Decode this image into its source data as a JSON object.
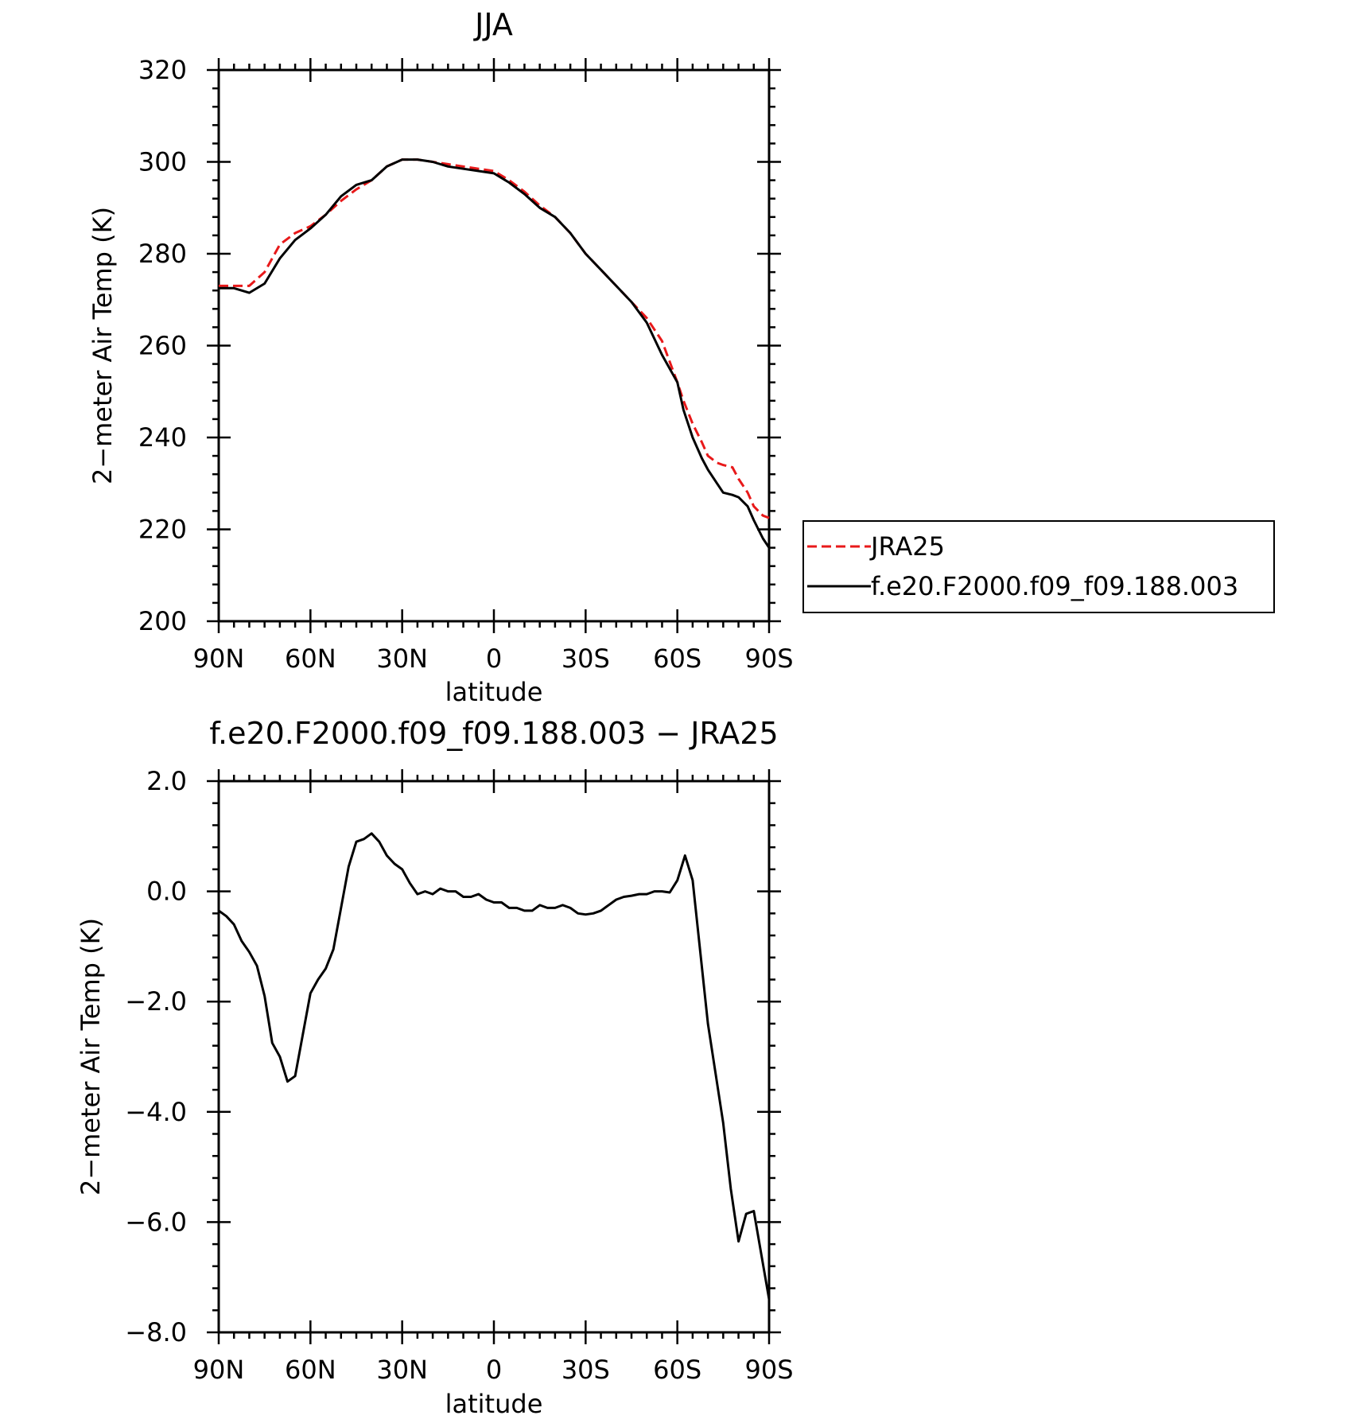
{
  "chart_data": [
    {
      "type": "line",
      "title": "JJA",
      "xlabel": "latitude",
      "ylabel": "2−meter Air Temp (K)",
      "xlim": [
        90,
        -90
      ],
      "ylim": [
        200,
        320
      ],
      "xtick_values": [
        90,
        60,
        30,
        0,
        -30,
        -60,
        -90
      ],
      "xtick_labels": [
        "90N",
        "60N",
        "30N",
        "0",
        "30S",
        "60S",
        "90S"
      ],
      "ytick_values": [
        200,
        220,
        240,
        260,
        280,
        300,
        320
      ],
      "ytick_labels": [
        "200",
        "220",
        "240",
        "260",
        "280",
        "300",
        "320"
      ],
      "legend_position": "right",
      "series": [
        {
          "name": "JRA25",
          "color": "#e8191a",
          "dash": "dashed",
          "x": [
            90,
            85,
            80,
            75,
            70,
            65,
            60,
            55,
            50,
            45,
            40,
            35,
            30,
            25,
            20,
            15,
            10,
            5,
            0,
            -5,
            -10,
            -15,
            -20,
            -25,
            -30,
            -35,
            -40,
            -45,
            -50,
            -55,
            -60,
            -62,
            -65,
            -68,
            -70,
            -73,
            -75,
            -78,
            -80,
            -83,
            -85,
            -88,
            -90
          ],
          "y": [
            273.0,
            273.0,
            273.0,
            276.0,
            282.0,
            284.5,
            286.0,
            288.5,
            291.5,
            294.0,
            296.0,
            299.0,
            300.5,
            300.5,
            300.0,
            299.5,
            299.0,
            298.5,
            298.0,
            296.0,
            293.5,
            290.5,
            288.0,
            284.5,
            280.0,
            276.5,
            273.0,
            269.5,
            266.0,
            261.0,
            252.0,
            248.0,
            243.0,
            239.0,
            236.0,
            234.5,
            234.0,
            233.5,
            231.0,
            228.0,
            225.0,
            223.0,
            222.5
          ]
        },
        {
          "name": "f.e20.F2000.f09_f09.188.003",
          "color": "#000000",
          "dash": "solid",
          "x": [
            90,
            85,
            80,
            75,
            70,
            65,
            60,
            55,
            50,
            45,
            40,
            35,
            30,
            25,
            20,
            15,
            10,
            5,
            0,
            -5,
            -10,
            -15,
            -20,
            -25,
            -30,
            -35,
            -40,
            -45,
            -50,
            -55,
            -60,
            -62,
            -65,
            -68,
            -70,
            -73,
            -75,
            -78,
            -80,
            -83,
            -85,
            -88,
            -90
          ],
          "y": [
            272.5,
            272.5,
            271.5,
            273.5,
            279.0,
            283.0,
            285.5,
            288.5,
            292.5,
            295.0,
            296.0,
            299.0,
            300.5,
            300.5,
            300.0,
            299.0,
            298.5,
            298.0,
            297.5,
            295.5,
            293.0,
            290.0,
            288.0,
            284.5,
            280.0,
            276.5,
            273.0,
            269.5,
            265.0,
            258.0,
            252.0,
            246.0,
            240.0,
            235.5,
            233.0,
            230.0,
            228.0,
            227.5,
            227.0,
            225.0,
            222.0,
            218.0,
            216.0
          ]
        }
      ]
    },
    {
      "type": "line",
      "title": "f.e20.F2000.f09_f09.188.003 − JRA25",
      "xlabel": "latitude",
      "ylabel": "2−meter Air Temp (K)",
      "xlim": [
        90,
        -90
      ],
      "ylim": [
        -8.0,
        2.0
      ],
      "xtick_values": [
        90,
        60,
        30,
        0,
        -30,
        -60,
        -90
      ],
      "xtick_labels": [
        "90N",
        "60N",
        "30N",
        "0",
        "30S",
        "60S",
        "90S"
      ],
      "ytick_values": [
        2.0,
        0.0,
        -2.0,
        -4.0,
        -6.0,
        -8.0
      ],
      "ytick_labels": [
        "2.0",
        "0.0",
        "−2.0",
        "−4.0",
        "−6.0",
        "−8.0"
      ],
      "series": [
        {
          "color": "#000000",
          "dash": "solid",
          "x": [
            90,
            87.5,
            85,
            82.5,
            80,
            77.5,
            75,
            72.5,
            70,
            67.5,
            65,
            62.5,
            60,
            57.5,
            55,
            52.5,
            50,
            47.5,
            45,
            42.5,
            40,
            37.5,
            35,
            32.5,
            30,
            27.5,
            25,
            22.5,
            20,
            17.5,
            15,
            12.5,
            10,
            7.5,
            5,
            2.5,
            0,
            -2.5,
            -5,
            -7.5,
            -10,
            -12.5,
            -15,
            -17.5,
            -20,
            -22.5,
            -25,
            -27.5,
            -30,
            -32.5,
            -35,
            -37.5,
            -40,
            -42.5,
            -45,
            -47.5,
            -50,
            -52.5,
            -55,
            -57.5,
            -60,
            -62.5,
            -65,
            -67.5,
            -70,
            -72.5,
            -75,
            -77.5,
            -80,
            -82.5,
            -85,
            -87.5,
            -90
          ],
          "y": [
            -0.35,
            -0.45,
            -0.6,
            -0.9,
            -1.1,
            -1.35,
            -1.9,
            -2.75,
            -3.0,
            -3.45,
            -3.35,
            -2.6,
            -1.85,
            -1.6,
            -1.4,
            -1.05,
            -0.3,
            0.45,
            0.9,
            0.95,
            1.05,
            0.9,
            0.65,
            0.5,
            0.4,
            0.15,
            -0.05,
            0.0,
            -0.05,
            0.05,
            0.0,
            0.0,
            -0.1,
            -0.1,
            -0.05,
            -0.15,
            -0.2,
            -0.2,
            -0.3,
            -0.3,
            -0.35,
            -0.35,
            -0.25,
            -0.3,
            -0.3,
            -0.25,
            -0.3,
            -0.4,
            -0.42,
            -0.4,
            -0.35,
            -0.25,
            -0.15,
            -0.1,
            -0.08,
            -0.05,
            -0.05,
            0.0,
            0.0,
            -0.02,
            0.2,
            0.65,
            0.2,
            -1.1,
            -2.4,
            -3.3,
            -4.2,
            -5.4,
            -6.35,
            -5.85,
            -5.8,
            -6.6,
            -7.4
          ]
        }
      ]
    }
  ]
}
